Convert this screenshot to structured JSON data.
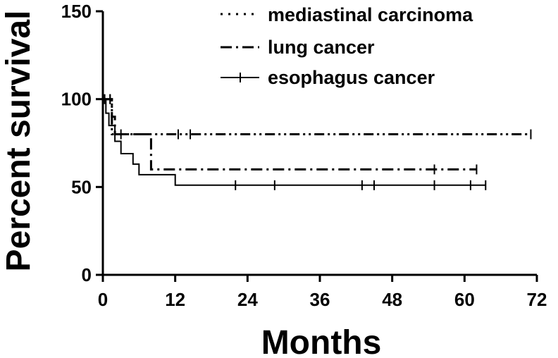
{
  "chart_data": {
    "type": "line",
    "title": "",
    "xlabel": "Months",
    "ylabel": "Percent survival",
    "xlim": [
      0,
      72
    ],
    "ylim": [
      0,
      150
    ],
    "xticks": [
      0,
      12,
      24,
      36,
      48,
      60,
      72
    ],
    "yticks": [
      0,
      50,
      100,
      150
    ],
    "grid": false,
    "legend_position": "top-right",
    "series": [
      {
        "name": "mediastinal carcinoma",
        "style": "dash-dot-dot",
        "steps": [
          [
            0,
            100
          ],
          [
            1.5,
            100
          ],
          [
            1.5,
            80
          ],
          [
            71,
            80
          ]
        ],
        "censored": [
          [
            1.2,
            100
          ],
          [
            3,
            80
          ],
          [
            12.5,
            80
          ],
          [
            14.5,
            80
          ],
          [
            71,
            80
          ]
        ]
      },
      {
        "name": "lung cancer",
        "style": "dash-dot",
        "steps": [
          [
            0,
            100
          ],
          [
            1.5,
            100
          ],
          [
            1.5,
            90
          ],
          [
            2,
            90
          ],
          [
            2,
            80
          ],
          [
            8,
            80
          ],
          [
            8,
            60
          ],
          [
            62,
            60
          ]
        ],
        "censored": [
          [
            1.2,
            100
          ],
          [
            55,
            60
          ],
          [
            62,
            60
          ]
        ]
      },
      {
        "name": "esophagus cancer",
        "style": "solid",
        "steps": [
          [
            0,
            100
          ],
          [
            0.5,
            100
          ],
          [
            0.5,
            92
          ],
          [
            1,
            92
          ],
          [
            1,
            85
          ],
          [
            2,
            85
          ],
          [
            2,
            76
          ],
          [
            3,
            76
          ],
          [
            3,
            69
          ],
          [
            5,
            69
          ],
          [
            5,
            63
          ],
          [
            6,
            63
          ],
          [
            6,
            57
          ],
          [
            12,
            57
          ],
          [
            12,
            51
          ],
          [
            63.5,
            51
          ]
        ],
        "censored": [
          [
            0.3,
            100
          ],
          [
            22,
            51
          ],
          [
            28.5,
            51
          ],
          [
            43,
            51
          ],
          [
            45,
            51
          ],
          [
            55,
            51
          ],
          [
            61,
            51
          ],
          [
            63.5,
            51
          ]
        ]
      }
    ]
  }
}
